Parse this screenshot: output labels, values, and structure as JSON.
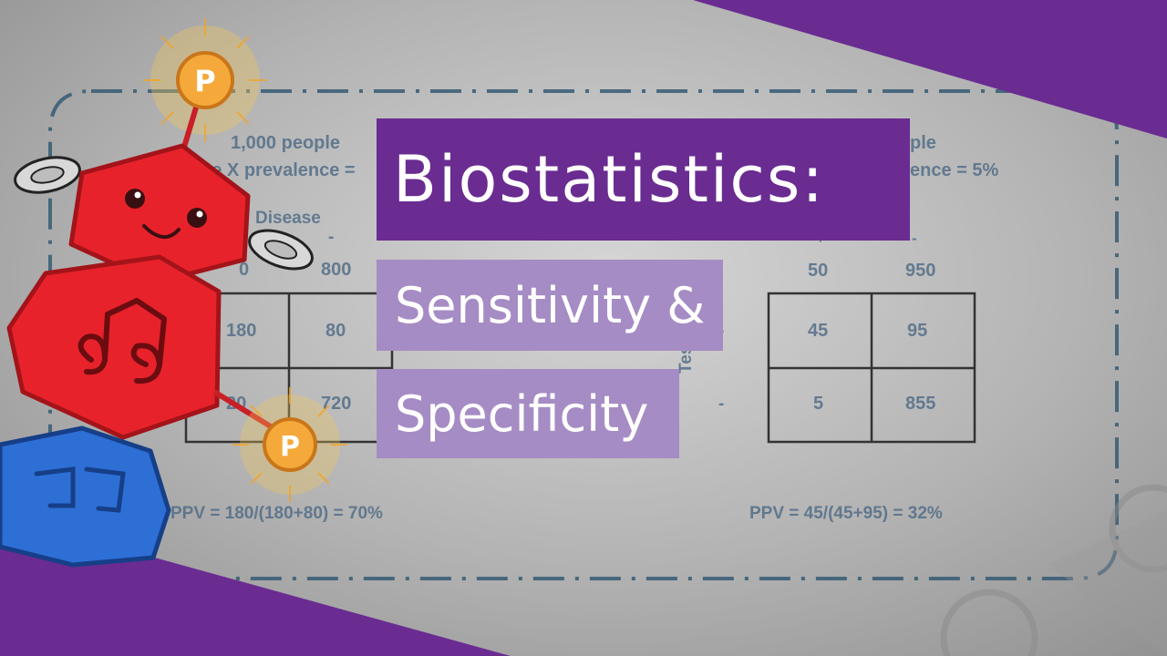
{
  "title": {
    "line1": "Biostatistics:",
    "line2": "Sensitivity &",
    "line3": "Specificity"
  },
  "background": {
    "left_panel": {
      "population": "1,000 people",
      "prevalence": "ase X prevalence =",
      "disease_label": "Disease",
      "minus_sign": "-",
      "col_total_left": "0",
      "col_total_right": "800",
      "cells": [
        "180",
        "80",
        "20",
        "720"
      ],
      "ppv": "PPV = 180/(180+80) = 70%"
    },
    "right_panel": {
      "population": "ple",
      "prevalence": "ence = 5%",
      "plus_sign": "+",
      "minus_sign": "-",
      "col_totals": [
        "50",
        "950"
      ],
      "test_label": "Test",
      "row_minus_top": "-",
      "row_minus_bottom": "-",
      "cells": [
        "45",
        "95",
        "5",
        "855"
      ],
      "ppv": "PPV = 45/(45+95) = 32%"
    }
  },
  "mascot": {
    "badge_letter_top": "P",
    "badge_letter_bottom": "P"
  },
  "colors": {
    "purple_dark": "#6a2c91",
    "purple_light": "#a68cc4",
    "robot_red": "#e8222b",
    "robot_blue": "#2e6fd6",
    "badge_gold": "#f4a93a"
  }
}
